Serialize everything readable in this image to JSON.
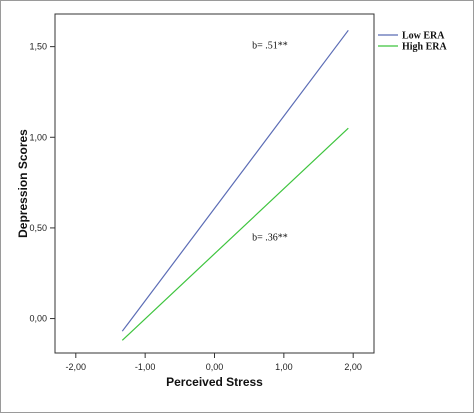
{
  "chart_data": {
    "type": "line",
    "xlabel": "Perceived Stress",
    "ylabel": "Depression Scores",
    "xlim": [
      -2.3,
      2.3
    ],
    "ylim": [
      -0.19,
      1.68
    ],
    "x_ticks": [
      -2,
      -1,
      0,
      1,
      2
    ],
    "x_tick_labels": [
      "-2,00",
      "-1,00",
      "0,00",
      "1,00",
      "2,00"
    ],
    "y_ticks": [
      0,
      0.5,
      1,
      1.5
    ],
    "y_tick_labels": [
      "0,00",
      "0,50",
      "1,00",
      "1,50"
    ],
    "grid": false,
    "legend_position": "outside-top-right",
    "series": [
      {
        "name": "Low ERA",
        "color": "#5b6cb5",
        "x": [
          -1.33,
          1.93
        ],
        "y": [
          -0.07,
          1.59
        ]
      },
      {
        "name": "High ERA",
        "color": "#3ec43e",
        "x": [
          -1.33,
          1.93
        ],
        "y": [
          -0.12,
          1.05
        ]
      }
    ],
    "annotations": [
      {
        "text": "b= .51**",
        "x": 0.8,
        "y": 1.49
      },
      {
        "text": "b= .36**",
        "x": 0.8,
        "y": 0.43
      }
    ]
  }
}
